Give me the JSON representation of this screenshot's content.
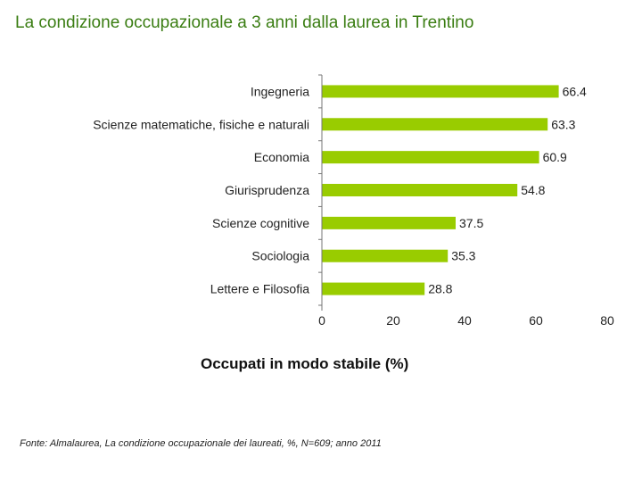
{
  "header": {
    "title": "La condizione occupazionale a 3 anni dalla laurea in Trentino"
  },
  "footer": {
    "source": "Fonte: Almalaurea, La condizione occupazionale dei laureati, %, N=609; anno 2011"
  },
  "colors": {
    "title": "#3a7d12",
    "bar": "#99cc00",
    "axis": "#777777"
  },
  "chart_data": {
    "type": "bar",
    "orientation": "horizontal",
    "title": "",
    "xlabel": "Occupati in modo stabile (%)",
    "ylabel": "",
    "xlim": [
      0,
      80
    ],
    "xticks": [
      0,
      20,
      40,
      60,
      80
    ],
    "grid": false,
    "categories": [
      "Ingegneria",
      "Scienze matematiche, fisiche e naturali",
      "Economia",
      "Giurisprudenza",
      "Scienze cognitive",
      "Sociologia",
      "Lettere e Filosofia"
    ],
    "values": [
      66.4,
      63.3,
      60.9,
      54.8,
      37.5,
      35.3,
      28.8
    ],
    "value_labels": [
      "66.4",
      "63.3",
      "60.9",
      "54.8",
      "37.5",
      "35.3",
      "28.8"
    ]
  }
}
